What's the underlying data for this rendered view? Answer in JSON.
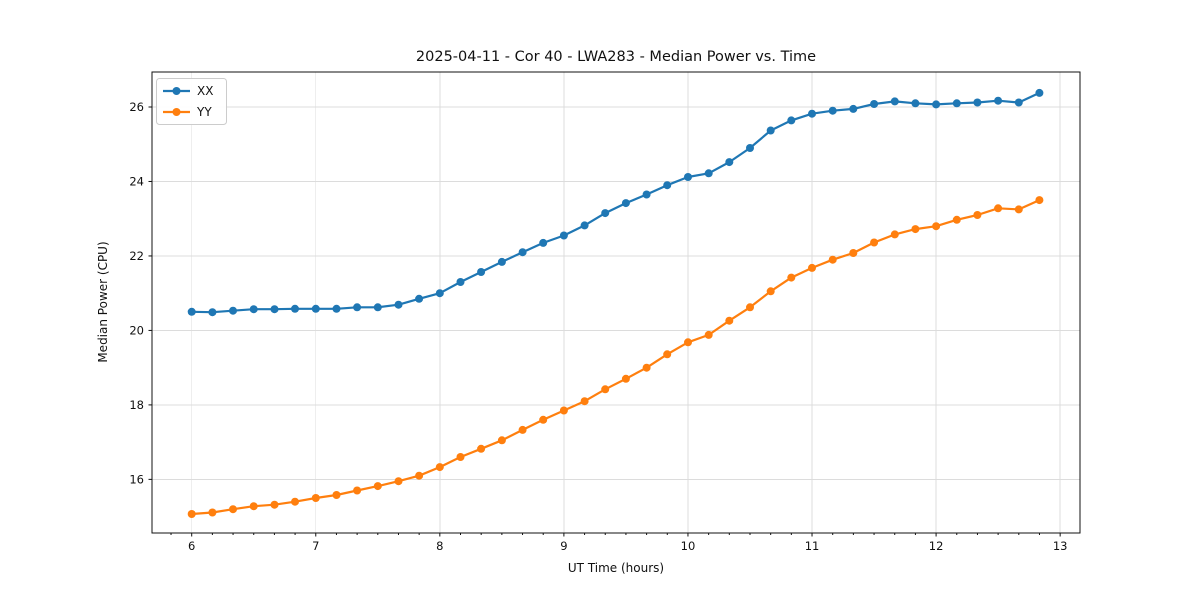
{
  "page": {
    "background": "#ffffff"
  },
  "chart_data": {
    "type": "line",
    "title": "2025-04-11 - Cor 40 - LWA283 - Median Power vs. Time",
    "xlabel": "UT Time (hours)",
    "ylabel": "Median Power (CPU)",
    "xlim": [
      5.68,
      13.16
    ],
    "ylim": [
      14.56,
      26.94
    ],
    "xticks": [
      6,
      7,
      8,
      9,
      10,
      11,
      12,
      13
    ],
    "yticks": [
      16,
      18,
      20,
      22,
      24,
      26
    ],
    "x_minor_step": 0.166667,
    "grid": true,
    "grid_color": "#dcdcdc",
    "legend_position": "upper-left",
    "marker": "circle",
    "x": [
      6.0,
      6.167,
      6.333,
      6.5,
      6.667,
      6.833,
      7.0,
      7.167,
      7.333,
      7.5,
      7.667,
      7.833,
      8.0,
      8.167,
      8.333,
      8.5,
      8.667,
      8.833,
      9.0,
      9.167,
      9.333,
      9.5,
      9.667,
      9.833,
      10.0,
      10.167,
      10.333,
      10.5,
      10.667,
      10.833,
      11.0,
      11.167,
      11.333,
      11.5,
      11.667,
      11.833,
      12.0,
      12.167,
      12.333,
      12.5,
      12.667,
      12.833
    ],
    "series": [
      {
        "name": "XX",
        "color": "#1f77b4",
        "values": [
          20.5,
          20.49,
          20.53,
          20.57,
          20.57,
          20.58,
          20.58,
          20.58,
          20.62,
          20.62,
          20.69,
          20.85,
          21.0,
          21.3,
          21.57,
          21.84,
          22.1,
          22.35,
          22.55,
          22.82,
          23.15,
          23.42,
          23.65,
          23.9,
          24.12,
          24.22,
          24.52,
          24.9,
          25.37,
          25.64,
          25.82,
          25.9,
          25.95,
          26.08,
          26.15,
          26.1,
          26.07,
          26.1,
          26.12,
          26.17,
          26.12,
          26.38
        ]
      },
      {
        "name": "YY",
        "color": "#ff7f0e",
        "values": [
          15.07,
          15.11,
          15.2,
          15.28,
          15.32,
          15.4,
          15.5,
          15.58,
          15.7,
          15.82,
          15.95,
          16.1,
          16.33,
          16.6,
          16.82,
          17.05,
          17.33,
          17.6,
          17.85,
          18.1,
          18.42,
          18.7,
          19.0,
          19.36,
          19.68,
          19.88,
          20.26,
          20.62,
          21.05,
          21.42,
          21.68,
          21.9,
          22.08,
          22.36,
          22.58,
          22.72,
          22.8,
          22.97,
          23.1,
          23.28,
          23.25,
          23.5
        ]
      }
    ]
  }
}
